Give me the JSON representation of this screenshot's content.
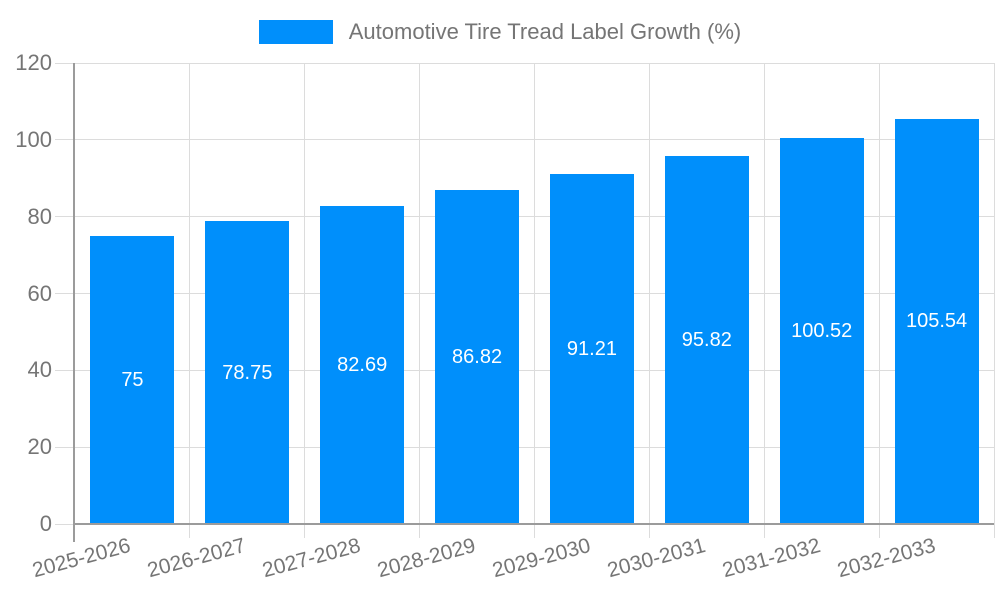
{
  "legend": {
    "label": "Automotive Tire Tread Label Growth (%)",
    "marker_color": "#008ffb"
  },
  "chart_data": {
    "type": "bar",
    "title": "",
    "xlabel": "",
    "ylabel": "",
    "categories": [
      "2025-2026",
      "2026-2027",
      "2027-2028",
      "2028-2029",
      "2029-2030",
      "2030-2031",
      "2031-2032",
      "2032-2033"
    ],
    "series": [
      {
        "name": "Automotive Tire Tread Label Growth (%)",
        "values": [
          75,
          78.75,
          82.69,
          86.82,
          91.21,
          95.82,
          100.52,
          105.54
        ]
      }
    ],
    "value_labels": [
      "75",
      "78.75",
      "82.69",
      "86.82",
      "91.21",
      "95.82",
      "100.52",
      "105.54"
    ],
    "ylim": [
      0,
      120
    ],
    "yticks": [
      0,
      20,
      40,
      60,
      80,
      100,
      120
    ],
    "grid": true,
    "legend_position": "top",
    "x_label_rotation_deg": -15,
    "data_label_position": "center-inside"
  },
  "colors": {
    "bar": "#008ffb",
    "grid": "#dcdcdc",
    "axis": "#9b9b9b",
    "tick_label": "#757575",
    "data_label": "#ffffff",
    "background": "#ffffff"
  }
}
